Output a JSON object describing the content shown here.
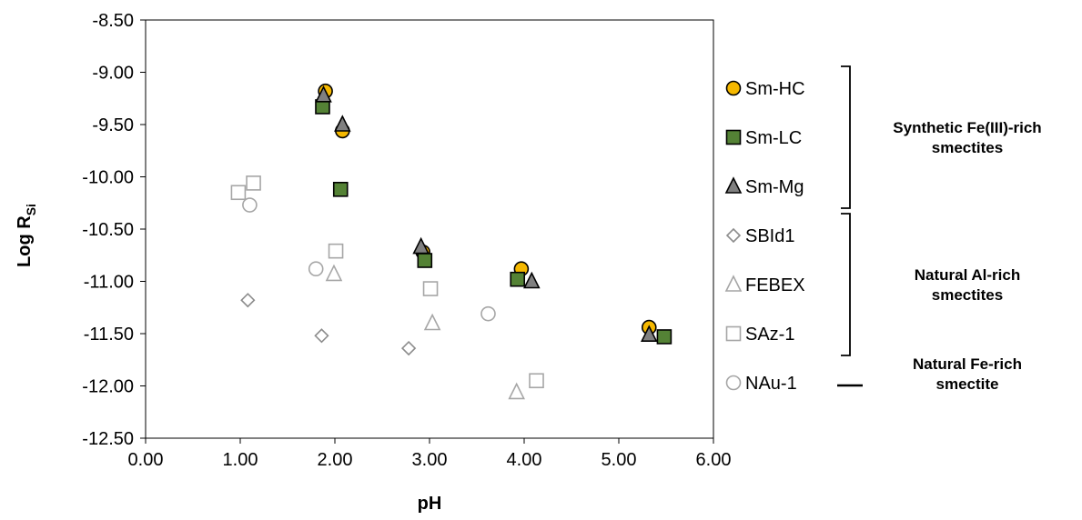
{
  "chart_data": {
    "type": "scatter",
    "xlabel": "pH",
    "ylabel_main": "Log R",
    "ylabel_sub": "Si",
    "xlim": [
      0,
      6
    ],
    "ylim": [
      -12.5,
      -8.5
    ],
    "xticks": [
      "0.00",
      "1.00",
      "2.00",
      "3.00",
      "4.00",
      "5.00",
      "6.00"
    ],
    "yticks": [
      "-8.50",
      "-9.00",
      "-9.50",
      "-10.00",
      "-10.50",
      "-11.00",
      "-11.50",
      "-12.00",
      "-12.50"
    ],
    "grid": false,
    "legend_position": "right",
    "series": [
      {
        "name": "Sm-HC",
        "marker": "circle",
        "fill": "#f5b800",
        "stroke": "#000000",
        "points": [
          [
            1.9,
            -9.18
          ],
          [
            2.08,
            -9.56
          ],
          [
            2.93,
            -10.72
          ],
          [
            3.97,
            -10.88
          ],
          [
            5.32,
            -11.44
          ]
        ]
      },
      {
        "name": "Sm-LC",
        "marker": "square",
        "fill": "#548235",
        "stroke": "#000000",
        "points": [
          [
            1.87,
            -9.33
          ],
          [
            2.06,
            -10.12
          ],
          [
            2.95,
            -10.8
          ],
          [
            3.93,
            -10.98
          ],
          [
            5.48,
            -11.53
          ]
        ]
      },
      {
        "name": "Sm-Mg",
        "marker": "triangle",
        "fill": "#808080",
        "stroke": "#000000",
        "points": [
          [
            1.88,
            -9.22
          ],
          [
            2.08,
            -9.5
          ],
          [
            2.91,
            -10.67
          ],
          [
            4.08,
            -11.0
          ],
          [
            5.32,
            -11.51
          ]
        ]
      },
      {
        "name": "SBId1",
        "marker": "diamond",
        "fill": "none",
        "stroke": "#8c8c8c",
        "points": [
          [
            1.08,
            -11.18
          ],
          [
            1.86,
            -11.52
          ],
          [
            2.78,
            -11.64
          ]
        ]
      },
      {
        "name": "FEBEX",
        "marker": "triangle",
        "fill": "none",
        "stroke": "#a6a6a6",
        "points": [
          [
            1.99,
            -10.93
          ],
          [
            3.03,
            -11.4
          ],
          [
            3.92,
            -12.06
          ]
        ]
      },
      {
        "name": "SAz-1",
        "marker": "square",
        "fill": "none",
        "stroke": "#a6a6a6",
        "points": [
          [
            0.98,
            -10.15
          ],
          [
            1.14,
            -10.06
          ],
          [
            2.01,
            -10.71
          ],
          [
            3.01,
            -11.07
          ],
          [
            4.13,
            -11.95
          ]
        ]
      },
      {
        "name": "NAu-1",
        "marker": "circle",
        "fill": "none",
        "stroke": "#a6a6a6",
        "points": [
          [
            1.1,
            -10.27
          ],
          [
            1.8,
            -10.88
          ],
          [
            3.62,
            -11.31
          ]
        ]
      }
    ],
    "groups": [
      {
        "lines": [
          "Synthetic Fe(III)-rich",
          "smectites"
        ],
        "members": [
          "Sm-HC",
          "Sm-LC",
          "Sm-Mg"
        ]
      },
      {
        "lines": [
          "Natural Al-rich",
          "smectites"
        ],
        "members": [
          "SBId1",
          "FEBEX",
          "SAz-1"
        ]
      },
      {
        "lines": [
          "Natural  Fe-rich",
          "smectite"
        ],
        "members": [
          "NAu-1"
        ]
      }
    ]
  }
}
